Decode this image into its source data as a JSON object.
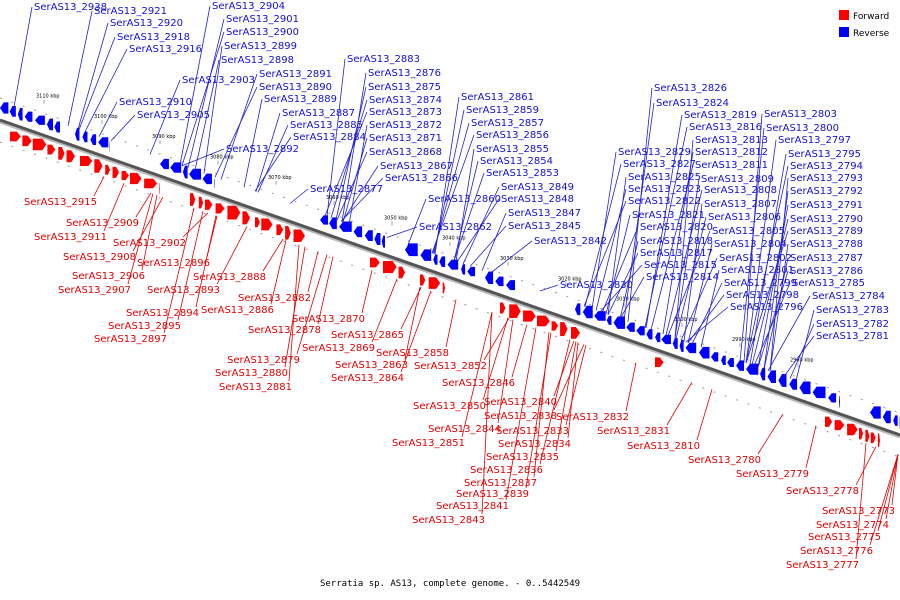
{
  "legend": {
    "forward_label": "Forward",
    "reverse_label": "Reverse",
    "forward_color": "#ff0000",
    "reverse_color": "#0000ff"
  },
  "footer": "Serratia sp. AS13, complete genome. - 0..5442549",
  "ticks": [
    "3110 kbp",
    "3100 kbp",
    "3090 kbp",
    "3080 kbp",
    "3070 kbp",
    "3060 kbp",
    "3050 kbp",
    "3040 kbp",
    "3030 kbp",
    "3020 kbp",
    "3010 kbp",
    "3000 kbp",
    "2990 kbp",
    "2980 kbp"
  ],
  "reverse_genes": [
    "SerAS13_2938",
    "SerAS13_2921",
    "SerAS13_2920",
    "SerAS13_2918",
    "SerAS13_2916",
    "SerAS13_2910",
    "SerAS13_2905",
    "SerAS13_2904",
    "SerAS13_2901",
    "SerAS13_2900",
    "SerAS13_2899",
    "SerAS13_2898",
    "SerAS13_2903",
    "SerAS13_2891",
    "SerAS13_2890",
    "SerAS13_2889",
    "SerAS13_2887",
    "SerAS13_2885",
    "SerAS13_2884",
    "SerAS13_2892",
    "SerAS13_2883",
    "SerAS13_2876",
    "SerAS13_2875",
    "SerAS13_2874",
    "SerAS13_2873",
    "SerAS13_2872",
    "SerAS13_2871",
    "SerAS13_2868",
    "SerAS13_2867",
    "SerAS13_2866",
    "SerAS13_2877",
    "SerAS13_2861",
    "SerAS13_2859",
    "SerAS13_2857",
    "SerAS13_2856",
    "SerAS13_2855",
    "SerAS13_2854",
    "SerAS13_2853",
    "SerAS13_2849",
    "SerAS13_2848",
    "SerAS13_2860",
    "SerAS13_2847",
    "SerAS13_2862",
    "SerAS13_2845",
    "SerAS13_2842",
    "SerAS13_2830",
    "SerAS13_2826",
    "SerAS13_2824",
    "SerAS13_2819",
    "SerAS13_2816",
    "SerAS13_2813",
    "SerAS13_2829",
    "SerAS13_2812",
    "SerAS13_2827",
    "SerAS13_2811",
    "SerAS13_2825",
    "SerAS13_2809",
    "SerAS13_2823",
    "SerAS13_2808",
    "SerAS13_2822",
    "SerAS13_2807",
    "SerAS13_2821",
    "SerAS13_2806",
    "SerAS13_2820",
    "SerAS13_2805",
    "SerAS13_2818",
    "SerAS13_2804",
    "SerAS13_2817",
    "SerAS13_2802",
    "SerAS13_2815",
    "SerAS13_2801",
    "SerAS13_2814",
    "SerAS13_2799",
    "SerAS13_2798",
    "SerAS13_2796",
    "SerAS13_2803",
    "SerAS13_2800",
    "SerAS13_2797",
    "SerAS13_2795",
    "SerAS13_2794",
    "SerAS13_2793",
    "SerAS13_2792",
    "SerAS13_2791",
    "SerAS13_2790",
    "SerAS13_2789",
    "SerAS13_2788",
    "SerAS13_2787",
    "SerAS13_2786",
    "SerAS13_2785",
    "SerAS13_2784",
    "SerAS13_2783",
    "SerAS13_2782",
    "SerAS13_2781"
  ],
  "forward_genes": [
    "SerAS13_2915",
    "SerAS13_2909",
    "SerAS13_2911",
    "SerAS13_2902",
    "SerAS13_2908",
    "SerAS13_2896",
    "SerAS13_2906",
    "SerAS13_2888",
    "SerAS13_2907",
    "SerAS13_2893",
    "SerAS13_2882",
    "SerAS13_2886",
    "SerAS13_2894",
    "SerAS13_2895",
    "SerAS13_2897",
    "SerAS13_2870",
    "SerAS13_2878",
    "SerAS13_2865",
    "SerAS13_2869",
    "SerAS13_2879",
    "SerAS13_2858",
    "SerAS13_2863",
    "SerAS13_2880",
    "SerAS13_2852",
    "SerAS13_2864",
    "SerAS13_2881",
    "SerAS13_2846",
    "SerAS13_2840",
    "SerAS13_2850",
    "SerAS13_2838",
    "SerAS13_2832",
    "SerAS13_2844",
    "SerAS13_2833",
    "SerAS13_2831",
    "SerAS13_2851",
    "SerAS13_2834",
    "SerAS13_2810",
    "SerAS13_2835",
    "SerAS13_2780",
    "SerAS13_2836",
    "SerAS13_2779",
    "SerAS13_2837",
    "SerAS13_2778",
    "SerAS13_2839",
    "SerAS13_2841",
    "SerAS13_2843",
    "SerAS13_2773",
    "SerAS13_2774",
    "SerAS13_2775",
    "SerAS13_2776",
    "SerAS13_2777"
  ]
}
